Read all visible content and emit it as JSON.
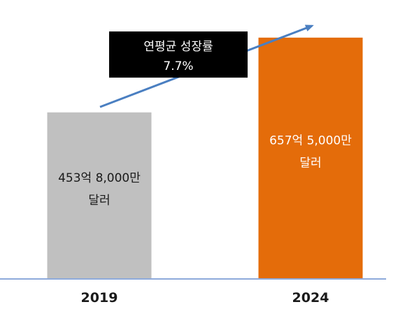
{
  "chart_data": {
    "type": "bar",
    "categories": [
      "2019",
      "2024"
    ],
    "values": [
      453.8,
      657.5
    ],
    "data_labels": [
      [
        "453억 8,000만",
        "달러"
      ],
      [
        "657억 5,000만",
        "달러"
      ]
    ],
    "ylim": [
      0,
      760
    ],
    "grid": false,
    "colors": [
      "#c0c0c0",
      "#e46c0a"
    ],
    "label_colors": [
      "#1a1a1a",
      "#ffffff"
    ],
    "annotation": {
      "lines": [
        "연평균 성장률",
        "7.7%"
      ],
      "arrow_color": "#4a7fc1",
      "box_color": "#000000"
    },
    "axis_color": "#8eaadb"
  }
}
